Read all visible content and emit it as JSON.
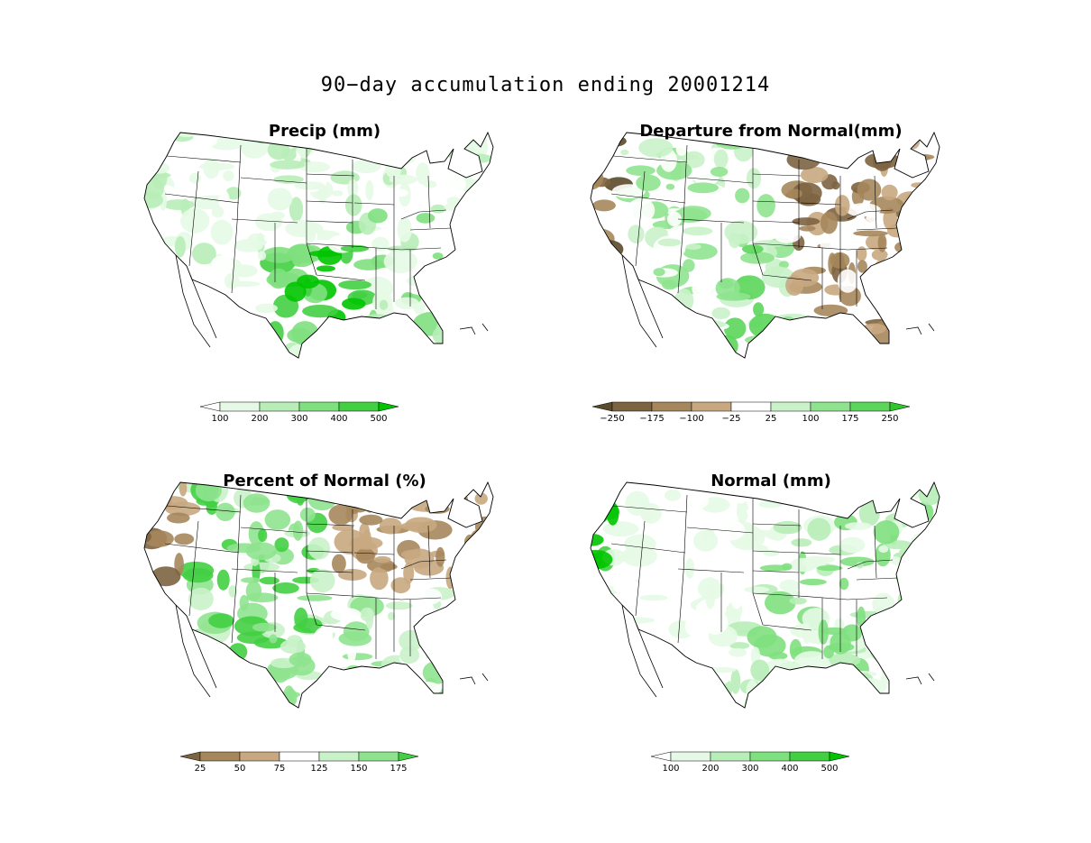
{
  "title": "90−day accumulation ending 20001214",
  "panels": [
    {
      "title": "Precip (mm)",
      "palette": [
        "#ffffff",
        "#e6f9e6",
        "#b8edb8",
        "#7fe07f",
        "#43cf43",
        "#00c400"
      ],
      "colorbar": {
        "colors": [
          "#ffffff",
          "#e6f9e6",
          "#b8edb8",
          "#7fe07f",
          "#43cf43",
          "#00c400"
        ],
        "ticks": [
          "100",
          "200",
          "300",
          "400",
          "500"
        ]
      }
    },
    {
      "title": "Departure from Normal(mm)",
      "palette": [
        "#5b4a2b",
        "#7d6441",
        "#a6875c",
        "#c8a881",
        "#ffffff",
        "#c9f2c9",
        "#8fe38f",
        "#5bd65b"
      ],
      "colorbar": {
        "colors": [
          "#5b4a2b",
          "#7d6441",
          "#a6875c",
          "#c8a881",
          "#ffffff",
          "#c9f2c9",
          "#8fe38f",
          "#5bd65b",
          "#2fc62f"
        ],
        "ticks": [
          "−250",
          "−175",
          "−100",
          "−25",
          "25",
          "100",
          "175",
          "250"
        ]
      }
    },
    {
      "title": "Percent of Normal (%)",
      "palette": [
        "#7d6441",
        "#a6875c",
        "#c8a881",
        "#ffffff",
        "#c9f2c9",
        "#8fe38f",
        "#43cf43"
      ],
      "colorbar": {
        "colors": [
          "#7d6441",
          "#a6875c",
          "#c8a881",
          "#ffffff",
          "#c9f2c9",
          "#8fe38f",
          "#43cf43"
        ],
        "ticks": [
          "25",
          "50",
          "75",
          "125",
          "150",
          "175"
        ]
      }
    },
    {
      "title": "Normal (mm)",
      "palette": [
        "#ffffff",
        "#e6f9e6",
        "#b8edb8",
        "#7fe07f",
        "#43cf43",
        "#00c400"
      ],
      "colorbar": {
        "colors": [
          "#ffffff",
          "#e6f9e6",
          "#b8edb8",
          "#7fe07f",
          "#43cf43",
          "#00c400"
        ],
        "ticks": [
          "100",
          "200",
          "300",
          "400",
          "500"
        ]
      }
    }
  ]
}
